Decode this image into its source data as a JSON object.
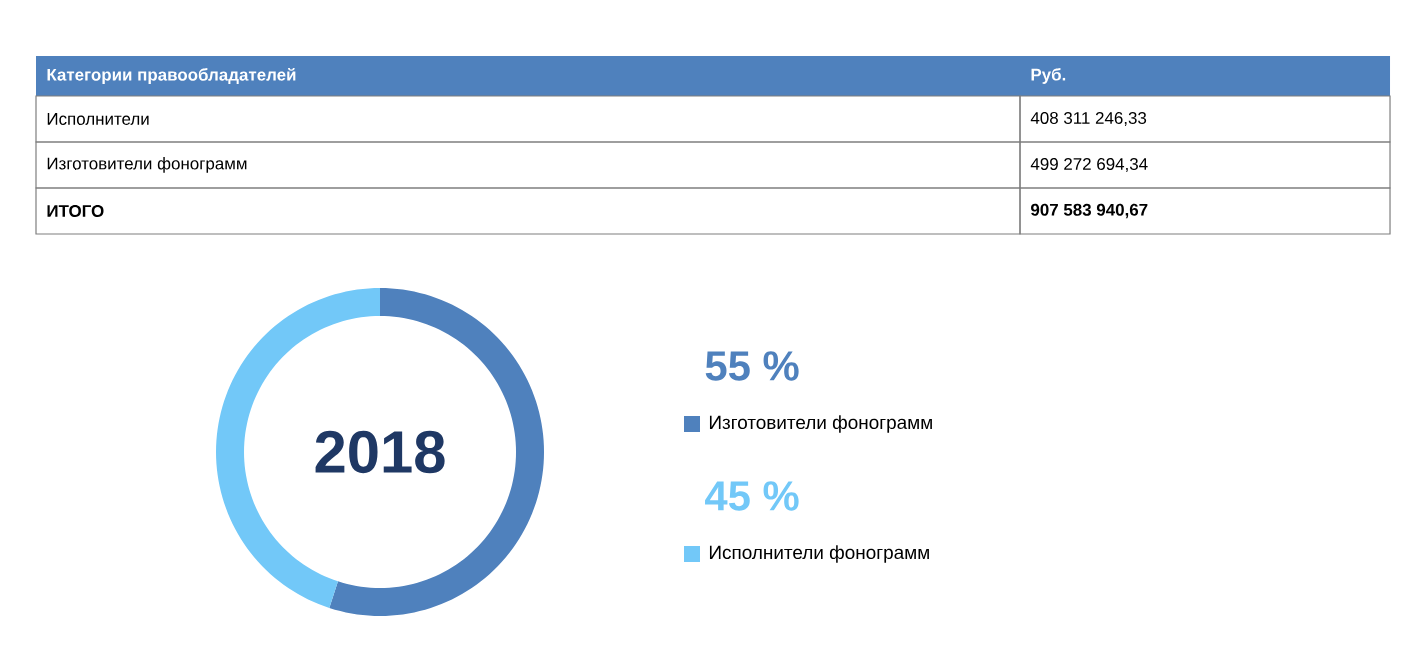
{
  "chart_data": {
    "type": "donut",
    "title": "2018",
    "categories": [
      "Изготовители фонограмм",
      "Исполнители фонограмм"
    ],
    "values": [
      55,
      45
    ],
    "colors": [
      "#4f81bd",
      "#72c8f8"
    ],
    "value_labels": [
      "55 %",
      "45 %"
    ],
    "legend": "right",
    "annotations": [
      "Категории правообладателей",
      "Руб.",
      "Исполнители",
      "408 311 246,33",
      "Изготовители фонограмм",
      "499 272 694,34",
      "ИТОГО",
      "907 583 940,67"
    ]
  }
}
